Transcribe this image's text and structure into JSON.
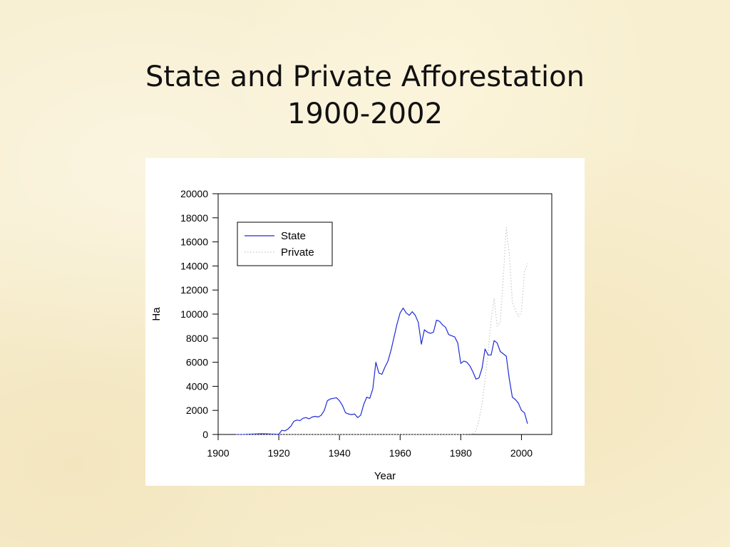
{
  "slide": {
    "title_line1": "State and Private Afforestation",
    "title_line2": "1900-2002"
  },
  "chart_data": {
    "type": "line",
    "xlabel": "Year",
    "ylabel": "Ha",
    "xlim": [
      1900,
      2010
    ],
    "ylim": [
      0,
      20000
    ],
    "xticks": [
      1900,
      1920,
      1940,
      1960,
      1980,
      2000
    ],
    "yticks": [
      0,
      2000,
      4000,
      6000,
      8000,
      10000,
      12000,
      14000,
      16000,
      18000,
      20000
    ],
    "grid": false,
    "legend": {
      "placement": "top-left",
      "entries": [
        "State",
        "Private"
      ]
    },
    "series": [
      {
        "name": "State",
        "color": "#1f2bd6",
        "style": "solid",
        "points": [
          [
            1906,
            0
          ],
          [
            1908,
            0
          ],
          [
            1910,
            20
          ],
          [
            1912,
            40
          ],
          [
            1914,
            60
          ],
          [
            1916,
            50
          ],
          [
            1918,
            30
          ],
          [
            1920,
            20
          ],
          [
            1921,
            350
          ],
          [
            1922,
            300
          ],
          [
            1923,
            450
          ],
          [
            1924,
            700
          ],
          [
            1925,
            1100
          ],
          [
            1926,
            1200
          ],
          [
            1927,
            1150
          ],
          [
            1928,
            1350
          ],
          [
            1929,
            1400
          ],
          [
            1930,
            1300
          ],
          [
            1931,
            1450
          ],
          [
            1932,
            1500
          ],
          [
            1933,
            1450
          ],
          [
            1934,
            1600
          ],
          [
            1935,
            2000
          ],
          [
            1936,
            2800
          ],
          [
            1937,
            2950
          ],
          [
            1938,
            3000
          ],
          [
            1939,
            3050
          ],
          [
            1940,
            2800
          ],
          [
            1941,
            2400
          ],
          [
            1942,
            1800
          ],
          [
            1943,
            1700
          ],
          [
            1944,
            1650
          ],
          [
            1945,
            1700
          ],
          [
            1946,
            1400
          ],
          [
            1947,
            1600
          ],
          [
            1948,
            2500
          ],
          [
            1949,
            3100
          ],
          [
            1950,
            3000
          ],
          [
            1951,
            3800
          ],
          [
            1952,
            6000
          ],
          [
            1953,
            5100
          ],
          [
            1954,
            5000
          ],
          [
            1955,
            5600
          ],
          [
            1956,
            6100
          ],
          [
            1957,
            7000
          ],
          [
            1958,
            8100
          ],
          [
            1959,
            9200
          ],
          [
            1960,
            10100
          ],
          [
            1961,
            10500
          ],
          [
            1962,
            10100
          ],
          [
            1963,
            9900
          ],
          [
            1964,
            10200
          ],
          [
            1965,
            9900
          ],
          [
            1966,
            9300
          ],
          [
            1967,
            7500
          ],
          [
            1968,
            8700
          ],
          [
            1969,
            8500
          ],
          [
            1970,
            8400
          ],
          [
            1971,
            8500
          ],
          [
            1972,
            9500
          ],
          [
            1973,
            9400
          ],
          [
            1974,
            9100
          ],
          [
            1975,
            8900
          ],
          [
            1976,
            8300
          ],
          [
            1977,
            8200
          ],
          [
            1978,
            8100
          ],
          [
            1979,
            7600
          ],
          [
            1980,
            5900
          ],
          [
            1981,
            6100
          ],
          [
            1982,
            6000
          ],
          [
            1983,
            5700
          ],
          [
            1984,
            5200
          ],
          [
            1985,
            4600
          ],
          [
            1986,
            4700
          ],
          [
            1987,
            5500
          ],
          [
            1988,
            7100
          ],
          [
            1989,
            6600
          ],
          [
            1990,
            6600
          ],
          [
            1991,
            7800
          ],
          [
            1992,
            7600
          ],
          [
            1993,
            6900
          ],
          [
            1994,
            6700
          ],
          [
            1995,
            6500
          ],
          [
            1996,
            4600
          ],
          [
            1997,
            3100
          ],
          [
            1998,
            2900
          ],
          [
            1999,
            2600
          ],
          [
            2000,
            2000
          ],
          [
            2001,
            1800
          ],
          [
            2002,
            900
          ]
        ]
      },
      {
        "name": "Private",
        "color": "#c7c7c7",
        "style": "dotted",
        "points": [
          [
            1906,
            0
          ],
          [
            1920,
            0
          ],
          [
            1940,
            0
          ],
          [
            1960,
            0
          ],
          [
            1980,
            0
          ],
          [
            1984,
            50
          ],
          [
            1985,
            300
          ],
          [
            1986,
            1200
          ],
          [
            1987,
            2500
          ],
          [
            1988,
            4500
          ],
          [
            1989,
            6800
          ],
          [
            1990,
            9500
          ],
          [
            1991,
            11300
          ],
          [
            1992,
            9000
          ],
          [
            1993,
            9300
          ],
          [
            1994,
            13000
          ],
          [
            1995,
            17200
          ],
          [
            1996,
            15000
          ],
          [
            1997,
            11000
          ],
          [
            1998,
            10300
          ],
          [
            1999,
            9800
          ],
          [
            2000,
            10200
          ],
          [
            2001,
            13500
          ],
          [
            2002,
            14200
          ]
        ]
      }
    ]
  }
}
